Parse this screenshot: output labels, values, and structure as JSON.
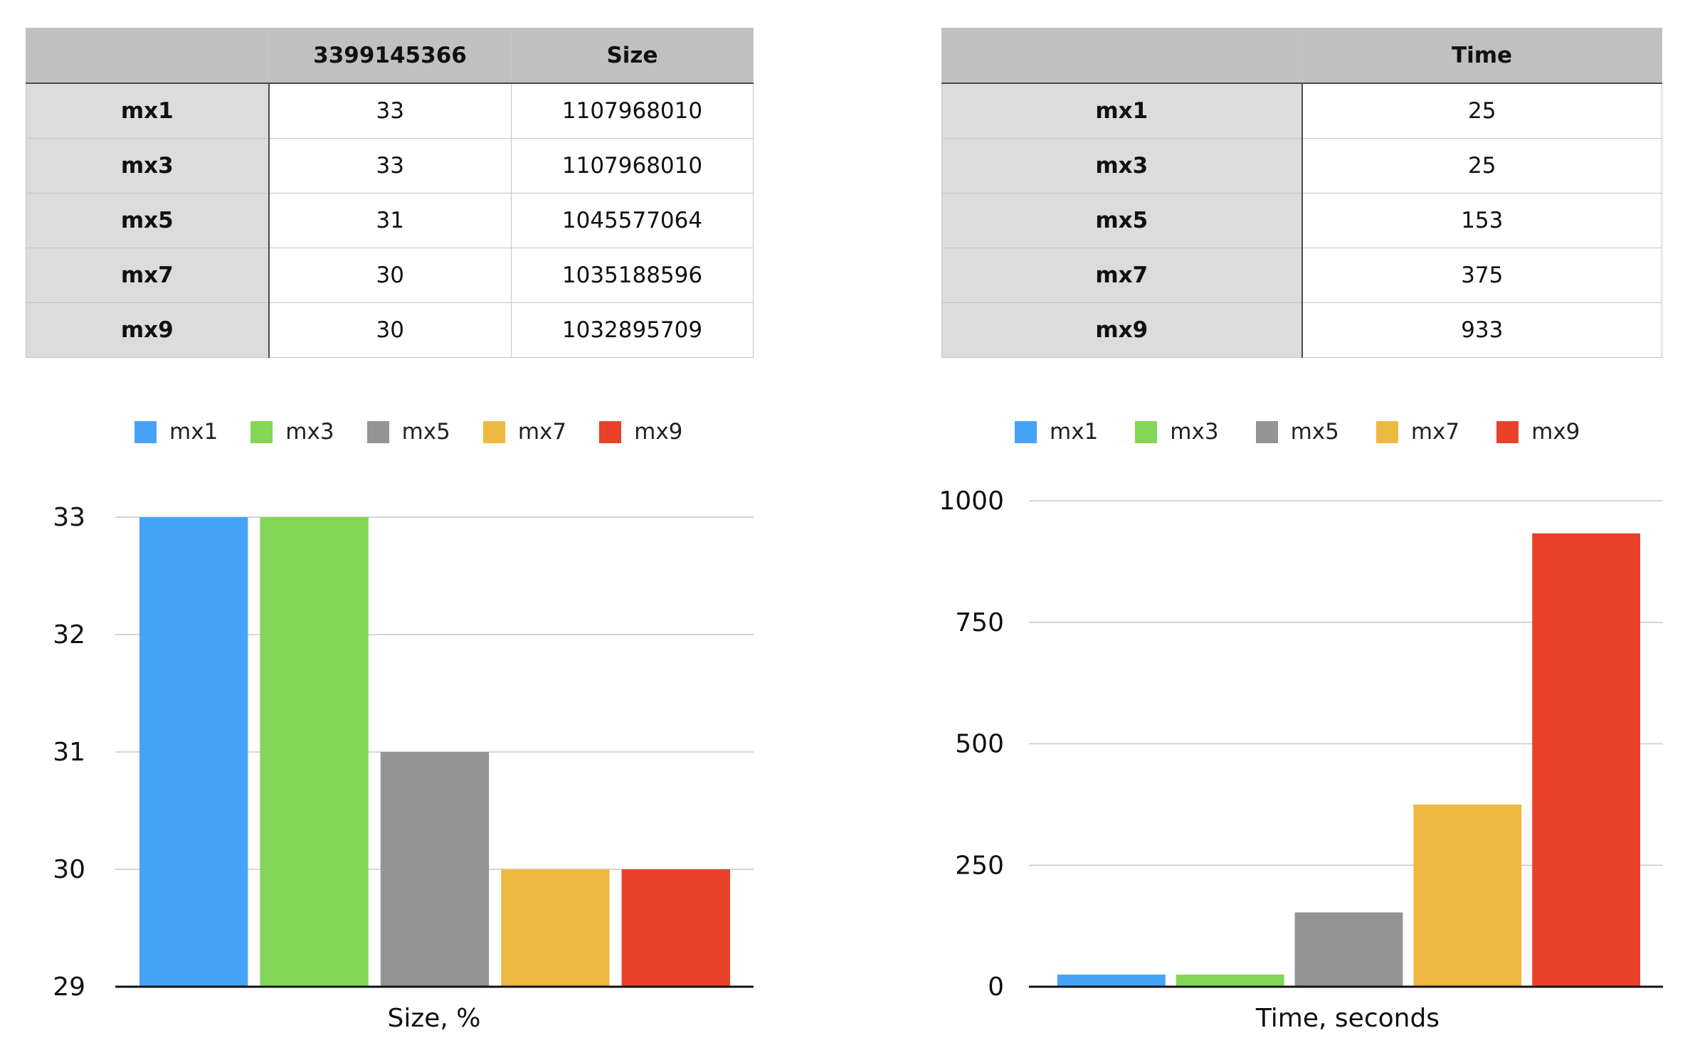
{
  "size_table": {
    "headers": [
      "",
      "3399145366",
      "Size"
    ],
    "rows": [
      {
        "label": "mx1",
        "cells": [
          "33",
          "1107968010"
        ]
      },
      {
        "label": "mx3",
        "cells": [
          "33",
          "1107968010"
        ]
      },
      {
        "label": "mx5",
        "cells": [
          "31",
          "1045577064"
        ]
      },
      {
        "label": "mx7",
        "cells": [
          "30",
          "1035188596"
        ]
      },
      {
        "label": "mx9",
        "cells": [
          "30",
          "1032895709"
        ]
      }
    ]
  },
  "time_table": {
    "headers": [
      "",
      "Time"
    ],
    "rows": [
      {
        "label": "mx1",
        "cells": [
          "25"
        ]
      },
      {
        "label": "mx3",
        "cells": [
          "25"
        ]
      },
      {
        "label": "mx5",
        "cells": [
          "153"
        ]
      },
      {
        "label": "mx7",
        "cells": [
          "375"
        ]
      },
      {
        "label": "mx9",
        "cells": [
          "933"
        ]
      }
    ]
  },
  "legend": {
    "entries": [
      {
        "name": "mx1",
        "color": "#45a3f8"
      },
      {
        "name": "mx3",
        "color": "#84d656"
      },
      {
        "name": "mx5",
        "color": "#949494"
      },
      {
        "name": "mx7",
        "color": "#eeb940"
      },
      {
        "name": "mx9",
        "color": "#e94128"
      }
    ]
  },
  "chart_data": [
    {
      "type": "bar",
      "categories": [
        "Size, %"
      ],
      "series": [
        {
          "name": "mx1",
          "values": [
            33
          ],
          "color": "#45a3f8"
        },
        {
          "name": "mx3",
          "values": [
            33
          ],
          "color": "#84d656"
        },
        {
          "name": "mx5",
          "values": [
            31
          ],
          "color": "#949494"
        },
        {
          "name": "mx7",
          "values": [
            30
          ],
          "color": "#eeb940"
        },
        {
          "name": "mx9",
          "values": [
            30
          ],
          "color": "#e94128"
        }
      ],
      "xlabel": "Size, %",
      "ylim": [
        29,
        33
      ],
      "yticks": [
        29,
        30,
        31,
        32,
        33
      ],
      "grid": true,
      "legend": "top"
    },
    {
      "type": "bar",
      "categories": [
        "Time, seconds"
      ],
      "series": [
        {
          "name": "mx1",
          "values": [
            25
          ],
          "color": "#45a3f8"
        },
        {
          "name": "mx3",
          "values": [
            25
          ],
          "color": "#84d656"
        },
        {
          "name": "mx5",
          "values": [
            153
          ],
          "color": "#949494"
        },
        {
          "name": "mx7",
          "values": [
            375
          ],
          "color": "#eeb940"
        },
        {
          "name": "mx9",
          "values": [
            933
          ],
          "color": "#e94128"
        }
      ],
      "xlabel": "Time, seconds",
      "ylim": [
        0,
        1000
      ],
      "yticks": [
        0,
        250,
        500,
        750,
        1000
      ],
      "grid": true,
      "legend": "top"
    }
  ]
}
